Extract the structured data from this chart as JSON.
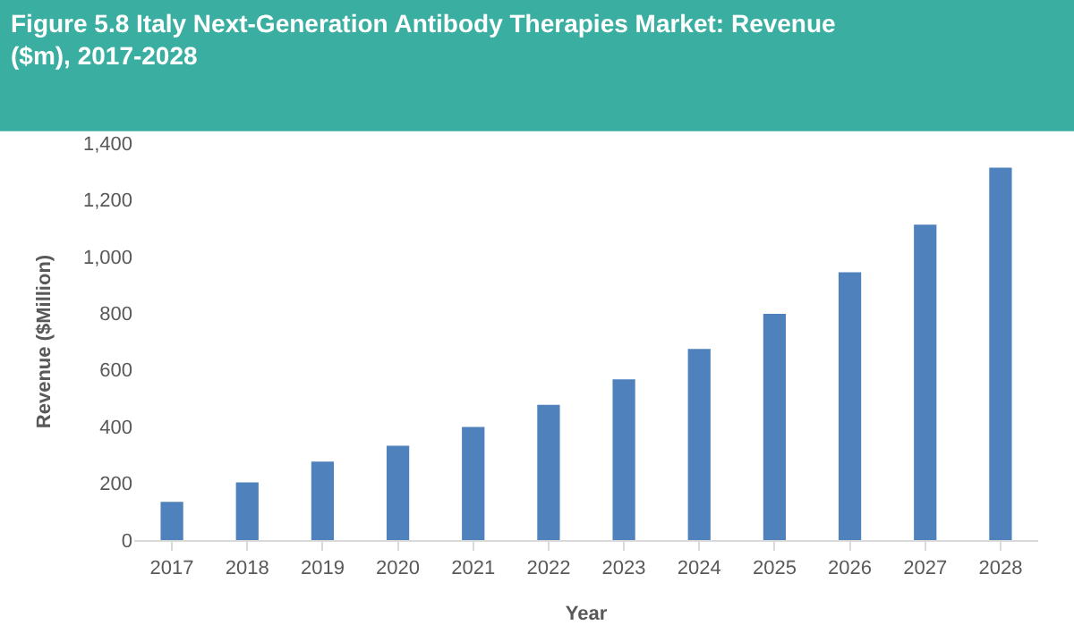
{
  "chart_data": {
    "type": "bar",
    "title": "Figure 5.8 Italy Next-Generation Antibody Therapies Market: Revenue ($m), 2017-2028",
    "categories": [
      "2017",
      "2018",
      "2019",
      "2020",
      "2021",
      "2022",
      "2023",
      "2024",
      "2025",
      "2026",
      "2027",
      "2028"
    ],
    "values": [
      135,
      203,
      277,
      333,
      399,
      477,
      567,
      674,
      798,
      944,
      1112,
      1313
    ],
    "color": "#4f81bd",
    "xlabel": "Year",
    "ylabel": "Revenue ($Million)",
    "ylim": [
      0,
      1400
    ],
    "yticks": [
      {
        "value": 0,
        "label": "0"
      },
      {
        "value": 200,
        "label": "200"
      },
      {
        "value": 400,
        "label": "400"
      },
      {
        "value": 600,
        "label": "600"
      },
      {
        "value": 800,
        "label": "800"
      },
      {
        "value": 1000,
        "label": "1,000"
      },
      {
        "value": 1200,
        "label": "1,200"
      },
      {
        "value": 1400,
        "label": "1,400"
      }
    ],
    "grid": false,
    "legend": false
  }
}
